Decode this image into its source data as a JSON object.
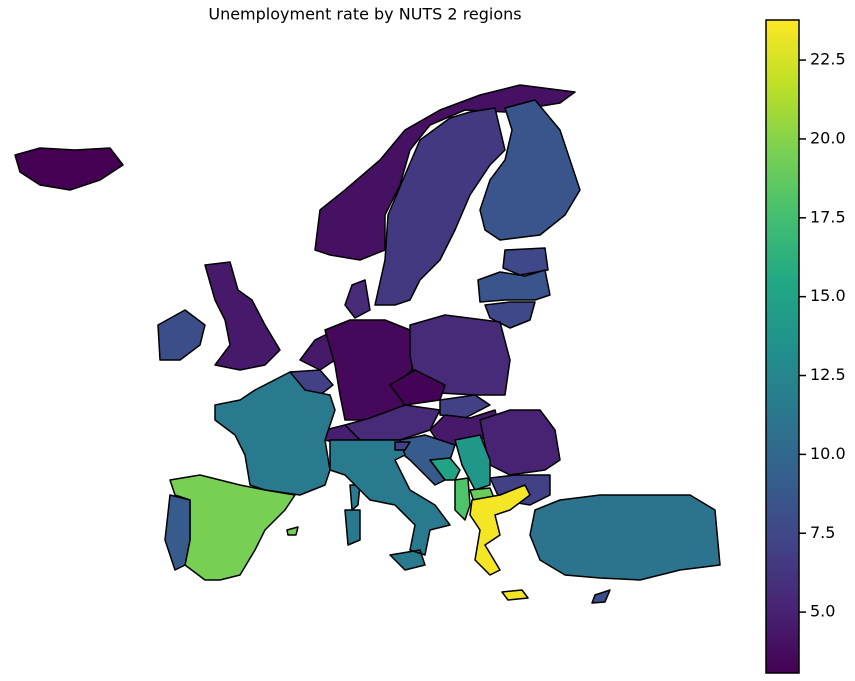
{
  "chart_data": {
    "type": "choropleth",
    "title": "Unemployment rate by NUTS 2 regions",
    "values": [
      3.0,
      4.0,
      6.5,
      8.5,
      7.5,
      8.5,
      7.5,
      4.5,
      8.0,
      5.5,
      4.5,
      7.0,
      3.5,
      5.5,
      3.2,
      7.0,
      5.5,
      4.8,
      4.5,
      5.0,
      7.0,
      14.0,
      9.0,
      15.0,
      19.0,
      18.0,
      23.5,
      11.5,
      11.5,
      19.5,
      9.0,
      11.0,
      8.0,
      7.0
    ],
    "colormap": "viridis",
    "clim": [
      3.07,
      23.77
    ],
    "cticks": [
      {
        "value": 5,
        "label": "5.0"
      },
      {
        "value": 7.5,
        "label": "7.5"
      },
      {
        "value": 10,
        "label": "10.0"
      },
      {
        "value": 12.5,
        "label": "12.5"
      },
      {
        "value": 15,
        "label": "15.0"
      },
      {
        "value": 17.5,
        "label": "17.5"
      },
      {
        "value": 20,
        "label": "20.0"
      },
      {
        "value": 22.5,
        "label": "22.5"
      }
    ]
  }
}
